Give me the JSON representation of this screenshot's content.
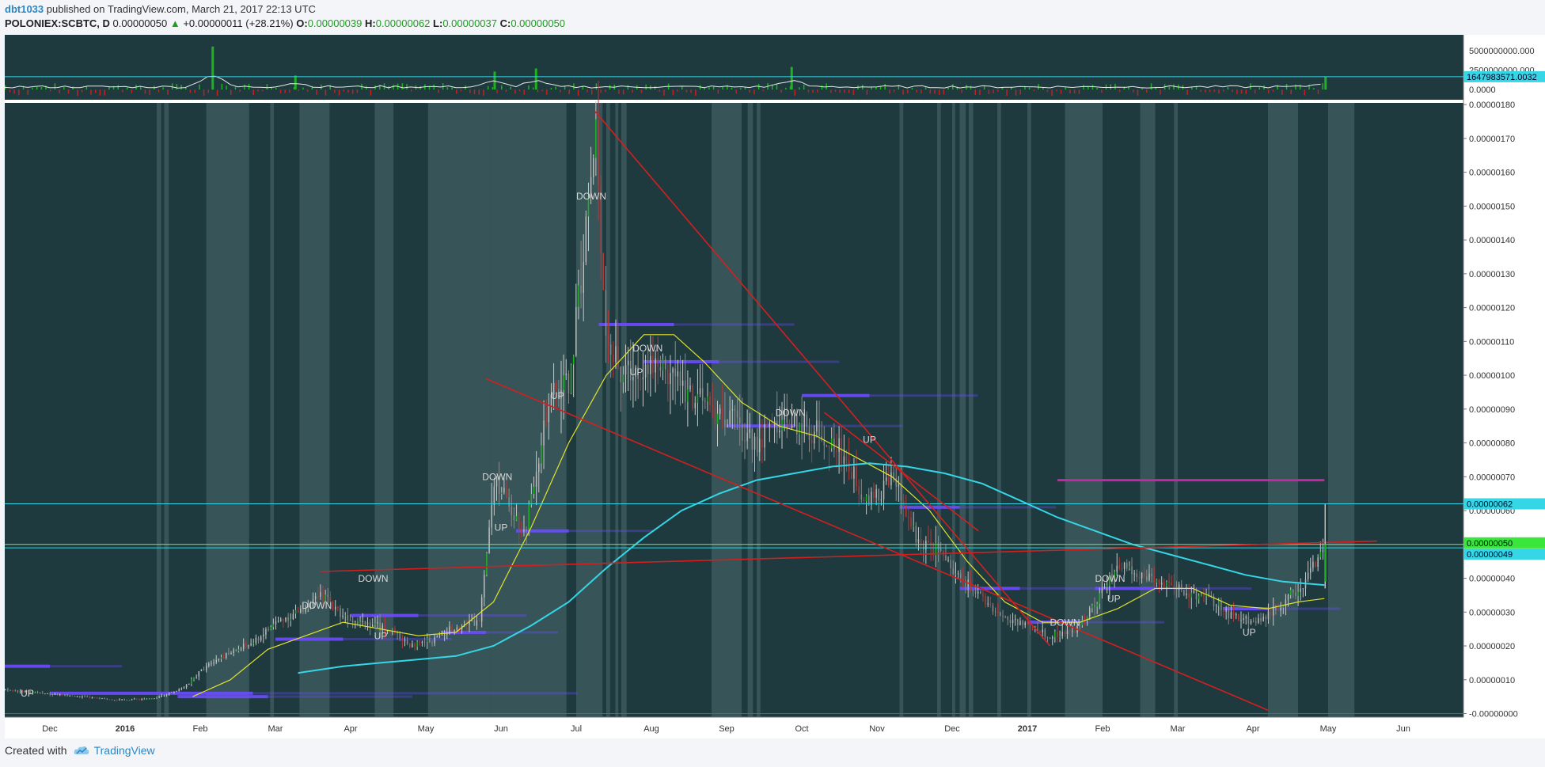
{
  "header": {
    "user": "dbt1033",
    "published_text": "published on TradingView.com, March 21, 2017 22:13 UTC"
  },
  "symbol_bar": {
    "symbol": "POLONIEX:SCBTC, D",
    "last": "0.00000050",
    "change": "+0.00000011 (+28.21%)",
    "open_label": "O:",
    "open": "0.00000039",
    "high_label": "H:",
    "high": "0.00000062",
    "low_label": "L:",
    "low": "0.00000037",
    "close_label": "C:",
    "close": "0.00000050"
  },
  "colors": {
    "background": "#1e3a3f",
    "bull": "#1db31d",
    "bear": "#c62020",
    "trendline": "#d41f1f",
    "sma_short": "#e3e32b",
    "sma_long": "#35d6e6",
    "volume_profile": "#6b4cff",
    "resistance": "#c02aa0",
    "highlight_band": "#4c6b6d"
  },
  "volume_pane": {
    "tick_labels": [
      "5000000000.000",
      "2500000000.000",
      "0.0000"
    ],
    "current_badge": "1647983571.0032"
  },
  "chart_data": {
    "type": "candlestick",
    "symbol": "POLONIEX:SCBTC",
    "interval": "D",
    "x_tick_labels": [
      "Dec",
      "2016",
      "Feb",
      "Mar",
      "Apr",
      "May",
      "Jun",
      "Jul",
      "Aug",
      "Sep",
      "Oct",
      "Nov",
      "Dec",
      "2017",
      "Feb",
      "Mar",
      "Apr",
      "May",
      "Jun"
    ],
    "y_tick_labels": [
      "0.00000180",
      "0.00000170",
      "0.00000160",
      "0.00000150",
      "0.00000140",
      "0.00000130",
      "0.00000120",
      "0.00000110",
      "0.00000100",
      "0.00000090",
      "0.00000080",
      "0.00000070",
      "0.00000060",
      "0.00000050",
      "0.00000040",
      "0.00000030",
      "0.00000020",
      "0.00000010",
      "-0.00000000"
    ],
    "ylim": [
      -1.05e-08,
      1.805e-06
    ],
    "price_badges": [
      "0.00000062",
      "0.00000050",
      "0.00000049"
    ],
    "signal_labels": [
      {
        "text": "UP",
        "x": 0.3,
        "y": 5e-08
      },
      {
        "text": "DOWN",
        "x": 4.9,
        "y": 3.9e-07
      },
      {
        "text": "DOWN",
        "x": 4.15,
        "y": 3.1e-07
      },
      {
        "text": "UP",
        "x": 5.0,
        "y": 2.2e-07
      },
      {
        "text": "DOWN",
        "x": 6.55,
        "y": 6.9e-07
      },
      {
        "text": "UP",
        "x": 6.6,
        "y": 5.4e-07
      },
      {
        "text": "UP",
        "x": 7.35,
        "y": 9.3e-07
      },
      {
        "text": "DOWN",
        "x": 7.8,
        "y": 1.52e-06
      },
      {
        "text": "DOWN",
        "x": 8.55,
        "y": 1.07e-06
      },
      {
        "text": "UP",
        "x": 8.4,
        "y": 1e-06
      },
      {
        "text": "DOWN",
        "x": 10.45,
        "y": 8.8e-07
      },
      {
        "text": "UP",
        "x": 11.5,
        "y": 8e-07
      },
      {
        "text": "DOWN",
        "x": 14.1,
        "y": 2.6e-07
      },
      {
        "text": "DOWN",
        "x": 14.7,
        "y": 3.9e-07
      },
      {
        "text": "UP",
        "x": 14.75,
        "y": 3.3e-07
      },
      {
        "text": "UP",
        "x": 16.55,
        "y": 2.3e-07
      }
    ],
    "price_series": [
      [
        0.0,
        7e-08
      ],
      [
        0.5,
        6e-08
      ],
      [
        1.0,
        5e-08
      ],
      [
        1.5,
        4e-08
      ],
      [
        2.0,
        4.5e-08
      ],
      [
        2.4,
        8e-08
      ],
      [
        2.7,
        1.5e-07
      ],
      [
        3.0,
        1.8e-07
      ],
      [
        3.3,
        2.1e-07
      ],
      [
        3.6,
        2.7e-07
      ],
      [
        3.9,
        3e-07
      ],
      [
        4.2,
        3.5e-07
      ],
      [
        4.5,
        2.9e-07
      ],
      [
        4.8,
        2.7e-07
      ],
      [
        5.1,
        2.5e-07
      ],
      [
        5.4,
        2e-07
      ],
      [
        5.7,
        2.2e-07
      ],
      [
        6.0,
        2.6e-07
      ],
      [
        6.3,
        2.7e-07
      ],
      [
        6.5,
        7e-07
      ],
      [
        6.7,
        6.2e-07
      ],
      [
        6.9,
        5.3e-07
      ],
      [
        7.1,
        7.8e-07
      ],
      [
        7.3,
        9.5e-07
      ],
      [
        7.5,
        9.8e-07
      ],
      [
        7.7,
        1.4e-06
      ],
      [
        7.85,
        1.7e-06
      ],
      [
        8.0,
        1.1e-06
      ],
      [
        8.2,
        1e-06
      ],
      [
        8.5,
        1.04e-06
      ],
      [
        8.8,
        1.02e-06
      ],
      [
        9.1,
        9.5e-07
      ],
      [
        9.4,
        9e-07
      ],
      [
        9.7,
        8.6e-07
      ],
      [
        10.0,
        8e-07
      ],
      [
        10.3,
        8.7e-07
      ],
      [
        10.5,
        8.5e-07
      ],
      [
        10.8,
        8.3e-07
      ],
      [
        11.1,
        7.8e-07
      ],
      [
        11.4,
        6.5e-07
      ],
      [
        11.6,
        6.4e-07
      ],
      [
        11.8,
        7e-07
      ],
      [
        12.1,
        5.2e-07
      ],
      [
        12.4,
        4.8e-07
      ],
      [
        12.7,
        4e-07
      ],
      [
        13.0,
        3.4e-07
      ],
      [
        13.3,
        2.8e-07
      ],
      [
        13.6,
        2.6e-07
      ],
      [
        13.9,
        2.3e-07
      ],
      [
        14.2,
        2.4e-07
      ],
      [
        14.5,
        3.3e-07
      ],
      [
        14.8,
        4.4e-07
      ],
      [
        15.1,
        4.1e-07
      ],
      [
        15.4,
        3.9e-07
      ],
      [
        15.7,
        3.6e-07
      ],
      [
        16.0,
        3.4e-07
      ],
      [
        16.3,
        2.9e-07
      ],
      [
        16.6,
        2.7e-07
      ],
      [
        16.9,
        3.1e-07
      ],
      [
        17.1,
        3.5e-07
      ],
      [
        17.3,
        3.9e-07
      ],
      [
        17.55,
        5e-07
      ]
    ],
    "volume_spikes": [
      {
        "x": 2.75,
        "value": 5500000000
      },
      {
        "x": 3.85,
        "value": 1800000000
      },
      {
        "x": 6.5,
        "value": 2300000000
      },
      {
        "x": 7.05,
        "value": 2700000000
      },
      {
        "x": 10.45,
        "value": 2900000000
      },
      {
        "x": 17.55,
        "value": 1647983571
      }
    ],
    "sma_short": [
      [
        2.5,
        5e-08
      ],
      [
        3.0,
        1e-07
      ],
      [
        3.5,
        1.9e-07
      ],
      [
        4.0,
        2.3e-07
      ],
      [
        4.5,
        2.7e-07
      ],
      [
        5.0,
        2.5e-07
      ],
      [
        5.5,
        2.3e-07
      ],
      [
        6.0,
        2.4e-07
      ],
      [
        6.5,
        3.3e-07
      ],
      [
        7.0,
        5.5e-07
      ],
      [
        7.5,
        8e-07
      ],
      [
        8.0,
        1e-06
      ],
      [
        8.5,
        1.12e-06
      ],
      [
        8.9,
        1.12e-06
      ],
      [
        9.3,
        1.04e-06
      ],
      [
        9.8,
        9.2e-07
      ],
      [
        10.3,
        8.5e-07
      ],
      [
        10.8,
        8.2e-07
      ],
      [
        11.3,
        7.6e-07
      ],
      [
        11.8,
        7e-07
      ],
      [
        12.3,
        6e-07
      ],
      [
        12.8,
        4.5e-07
      ],
      [
        13.3,
        3.3e-07
      ],
      [
        13.8,
        2.7e-07
      ],
      [
        14.3,
        2.7e-07
      ],
      [
        14.8,
        3.1e-07
      ],
      [
        15.3,
        3.7e-07
      ],
      [
        15.8,
        3.7e-07
      ],
      [
        16.3,
        3.2e-07
      ],
      [
        16.8,
        3.1e-07
      ],
      [
        17.2,
        3.3e-07
      ],
      [
        17.55,
        3.4e-07
      ]
    ],
    "sma_long": [
      [
        3.9,
        1.2e-07
      ],
      [
        4.5,
        1.4e-07
      ],
      [
        5.0,
        1.5e-07
      ],
      [
        5.5,
        1.6e-07
      ],
      [
        6.0,
        1.7e-07
      ],
      [
        6.5,
        2e-07
      ],
      [
        7.0,
        2.6e-07
      ],
      [
        7.5,
        3.3e-07
      ],
      [
        8.0,
        4.3e-07
      ],
      [
        8.5,
        5.2e-07
      ],
      [
        9.0,
        6e-07
      ],
      [
        9.5,
        6.5e-07
      ],
      [
        10.0,
        6.9e-07
      ],
      [
        10.5,
        7.1e-07
      ],
      [
        11.0,
        7.3e-07
      ],
      [
        11.5,
        7.4e-07
      ],
      [
        12.0,
        7.3e-07
      ],
      [
        12.5,
        7.1e-07
      ],
      [
        13.0,
        6.8e-07
      ],
      [
        13.5,
        6.3e-07
      ],
      [
        14.0,
        5.8e-07
      ],
      [
        14.5,
        5.4e-07
      ],
      [
        15.0,
        5e-07
      ],
      [
        15.5,
        4.7e-07
      ],
      [
        16.0,
        4.4e-07
      ],
      [
        16.5,
        4.1e-07
      ],
      [
        17.0,
        3.9e-07
      ],
      [
        17.55,
        3.8e-07
      ]
    ],
    "trendlines": [
      {
        "x1": 7.85,
        "y1": 1.78e-06,
        "x2": 13.9,
        "y2": 2e-07
      },
      {
        "x1": 6.4,
        "y1": 9.9e-07,
        "x2": 16.8,
        "y2": 1e-08
      },
      {
        "x1": 4.2,
        "y1": 4.2e-07,
        "x2": 18.25,
        "y2": 5.1e-07
      },
      {
        "x1": 10.9,
        "y1": 8.9e-07,
        "x2": 12.95,
        "y2": 5.4e-07
      }
    ],
    "horizontal_lines": [
      6.2e-07,
      5e-07,
      4.9e-07
    ],
    "resistance_line": {
      "x1": 14.0,
      "x2": 17.55,
      "y": 6.9e-07
    },
    "zero_line": 0.0,
    "volume_profile_bars": [
      {
        "x1": 0.0,
        "x2": 0.6,
        "y": 1.4e-07
      },
      {
        "x1": 0.6,
        "x2": 3.3,
        "y": 6e-08
      },
      {
        "x1": 2.3,
        "x2": 3.5,
        "y": 5e-08
      },
      {
        "x1": 3.6,
        "x2": 4.5,
        "y": 2.2e-07
      },
      {
        "x1": 4.6,
        "x2": 5.5,
        "y": 2.9e-07
      },
      {
        "x1": 5.8,
        "x2": 6.4,
        "y": 2.4e-07
      },
      {
        "x1": 6.8,
        "x2": 7.5,
        "y": 5.4e-07
      },
      {
        "x1": 7.9,
        "x2": 8.9,
        "y": 1.15e-06
      },
      {
        "x1": 8.5,
        "x2": 9.5,
        "y": 1.04e-06
      },
      {
        "x1": 10.6,
        "x2": 11.5,
        "y": 9.4e-07
      },
      {
        "x1": 9.6,
        "x2": 10.5,
        "y": 8.5e-07
      },
      {
        "x1": 11.9,
        "x2": 12.7,
        "y": 6.1e-07
      },
      {
        "x1": 12.7,
        "x2": 13.5,
        "y": 3.7e-07
      },
      {
        "x1": 13.6,
        "x2": 14.3,
        "y": 2.7e-07
      },
      {
        "x1": 14.5,
        "x2": 15.3,
        "y": 3.7e-07
      },
      {
        "x1": 16.2,
        "x2": 16.8,
        "y": 3.1e-07
      }
    ],
    "session_bands": [
      [
        2.02,
        2.08
      ],
      [
        2.12,
        2.18
      ],
      [
        2.68,
        3.25
      ],
      [
        3.53,
        3.58
      ],
      [
        3.92,
        4.32
      ],
      [
        4.92,
        5.17
      ],
      [
        5.63,
        6.47
      ],
      [
        6.47,
        7.47
      ],
      [
        7.6,
        7.95
      ],
      [
        8.0,
        8.05
      ],
      [
        8.12,
        8.16
      ],
      [
        8.2,
        8.27
      ],
      [
        9.4,
        9.8
      ],
      [
        9.88,
        9.95
      ],
      [
        10.0,
        10.05
      ],
      [
        11.9,
        11.95
      ],
      [
        12.4,
        12.45
      ],
      [
        12.6,
        12.64
      ],
      [
        12.7,
        12.78
      ],
      [
        12.82,
        12.88
      ],
      [
        13.2,
        13.25
      ],
      [
        13.6,
        13.65
      ],
      [
        14.1,
        14.6
      ],
      [
        15.1,
        15.3
      ],
      [
        15.55,
        15.6
      ],
      [
        16.8,
        17.2
      ],
      [
        17.6,
        17.95
      ]
    ],
    "x_range": [
      0,
      19.4
    ],
    "vol_ylim": [
      -1300000000,
      7000000000
    ]
  },
  "footer": {
    "created_with": "Created with",
    "brand": "TradingView"
  }
}
